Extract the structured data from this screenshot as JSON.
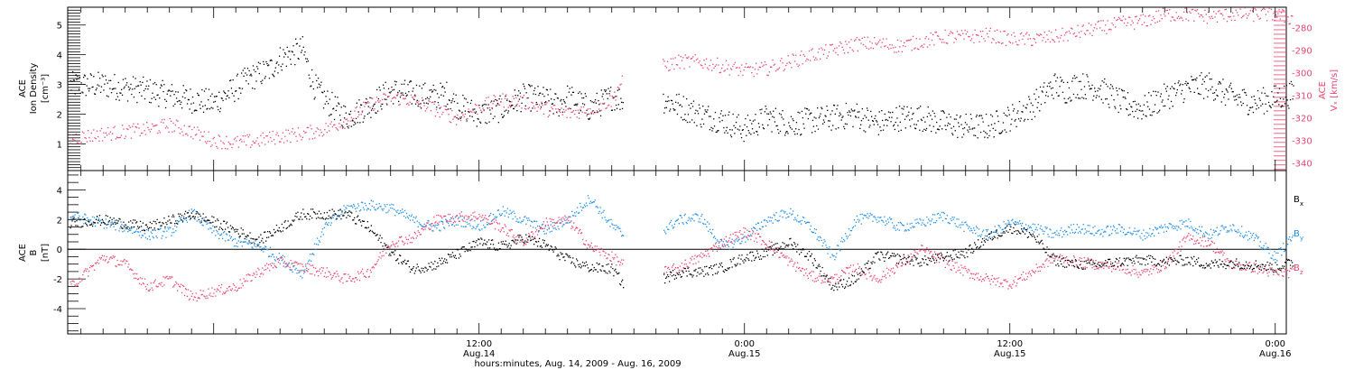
{
  "colors": {
    "black": "#000000",
    "pink": "#e8456f",
    "blue": "#1f8fe8"
  },
  "x_axis": {
    "title": "hours:minutes, Aug. 14, 2009 - Aug. 16, 2009",
    "range_hours": [
      -18.6,
      36.5
    ],
    "ticks": [
      {
        "hours": 0,
        "time": "12:00",
        "date": "Aug.14"
      },
      {
        "hours": 12,
        "time": "0:00",
        "date": "Aug.15"
      },
      {
        "hours": 24,
        "time": "12:00",
        "date": "Aug.15"
      },
      {
        "hours": 36,
        "time": "0:00",
        "date": "Aug.16"
      }
    ],
    "data_gap_hours": [
      6.5,
      8.3
    ],
    "data_end_hours": 36.8
  },
  "chart_data": [
    {
      "type": "scatter",
      "panel": "top",
      "left_axis": {
        "label_lines": [
          "ACE",
          "Ion Density",
          "[cm⁻³]"
        ],
        "ylim": [
          0.1,
          5.6
        ],
        "ticks": [
          1,
          2,
          3,
          4,
          5
        ],
        "color": "#000000"
      },
      "right_axis": {
        "label_lines": [
          "ACE",
          "Vₓ [km/s]"
        ],
        "ylim": [
          -343.5,
          -271
        ],
        "ticks": [
          -280,
          -290,
          -300,
          -310,
          -320,
          -330,
          -340
        ],
        "color": "#e8456f"
      },
      "series": [
        {
          "axis": "left",
          "color": "#000000",
          "x": [
            -18.5,
            -17,
            -15,
            -13,
            -12,
            -11,
            -10.5,
            -9.5,
            -9,
            -8,
            -7.5,
            -7,
            -6,
            -5,
            -4,
            -3,
            -2,
            -1.5,
            -1,
            0,
            1,
            2,
            3,
            3.5,
            4,
            5,
            6,
            6.5,
            8.3,
            9,
            10,
            11,
            12,
            13,
            14,
            15,
            16,
            17,
            18,
            19,
            20,
            21,
            22,
            23,
            24,
            25,
            26,
            26.5,
            27,
            28,
            29,
            30,
            31,
            32,
            33,
            34,
            35,
            36.8
          ],
          "y": [
            3.0,
            3.0,
            2.8,
            2.5,
            2.4,
            2.9,
            3.2,
            3.5,
            3.9,
            4.2,
            3.0,
            2.5,
            1.9,
            2.3,
            2.8,
            2.7,
            2.6,
            2.7,
            2.3,
            2.0,
            2.2,
            2.6,
            2.5,
            2.3,
            2.6,
            2.2,
            2.6,
            2.5,
            2.5,
            2.3,
            2.0,
            1.8,
            1.5,
            1.9,
            1.7,
            1.8,
            1.9,
            2.0,
            1.7,
            1.9,
            1.9,
            1.7,
            1.6,
            1.6,
            1.9,
            2.3,
            3.0,
            2.8,
            3.0,
            2.9,
            2.4,
            2.2,
            2.6,
            2.9,
            3.0,
            2.6,
            2.4,
            2.7
          ]
        },
        {
          "axis": "right",
          "color": "#e8456f",
          "x": [
            -18.5,
            -17,
            -16,
            -15,
            -14,
            -13,
            -12,
            -11,
            -10,
            -9,
            -8,
            -7,
            -6,
            -5,
            -4,
            -3,
            -2,
            -1,
            0,
            1,
            2,
            3,
            4,
            5,
            6,
            6.5,
            8.3,
            9,
            10,
            11,
            12,
            13,
            14,
            15,
            16,
            17,
            18,
            19,
            20,
            21,
            22,
            23,
            24,
            25,
            26,
            27,
            28,
            29,
            30,
            31,
            32,
            33,
            34,
            35,
            36,
            36.8
          ],
          "y": [
            -329,
            -327,
            -326,
            -325,
            -323,
            -326,
            -330,
            -331,
            -330,
            -328,
            -327,
            -325,
            -321,
            -314,
            -311,
            -312,
            -316,
            -320,
            -315,
            -312,
            -313,
            -316,
            -318,
            -316,
            -312,
            -302,
            -297,
            -295,
            -295,
            -297,
            -299,
            -298,
            -295,
            -292,
            -290,
            -287,
            -287,
            -288,
            -286,
            -284,
            -284,
            -283,
            -285,
            -285,
            -284,
            -282,
            -280,
            -278,
            -277,
            -274,
            -274,
            -275,
            -274,
            -274,
            -274,
            -276
          ]
        }
      ]
    },
    {
      "type": "scatter",
      "panel": "bottom",
      "y_axis": {
        "label_lines": [
          "ACE",
          "B",
          "[nT]"
        ],
        "ylim": [
          -5.7,
          5.3
        ],
        "ticks": [
          -4,
          -2,
          0,
          2,
          4
        ],
        "zero_line": true
      },
      "legend": [
        {
          "main": "B",
          "sub": "x",
          "color": "#000000"
        },
        {
          "main": "B",
          "sub": "y",
          "color": "#1f8fe8"
        },
        {
          "main": "B",
          "sub": "z",
          "color": "#e8456f"
        }
      ],
      "legend_position": "right",
      "series": [
        {
          "name": "Bx",
          "color": "#000000",
          "x": [
            -18.5,
            -17,
            -15,
            -13,
            -11,
            -10,
            -8,
            -7,
            -6,
            -5,
            -4,
            -3,
            -2,
            -1,
            0,
            1,
            2,
            3,
            4,
            5,
            6,
            6.5,
            8.3,
            9,
            10,
            11,
            12,
            13,
            14,
            15,
            16,
            17,
            18,
            19,
            20,
            21,
            22,
            23,
            24,
            25,
            26,
            27,
            28,
            29,
            30,
            31,
            32,
            33,
            34,
            35,
            36,
            36.8
          ],
          "y": [
            1.8,
            2.0,
            1.5,
            2.4,
            1.3,
            0.6,
            2.4,
            2.4,
            2.4,
            1.5,
            -0.2,
            -1.3,
            -1.0,
            -0.3,
            0.5,
            0.2,
            0.8,
            0.3,
            -0.7,
            -1.2,
            -1.3,
            -2.3,
            -2.0,
            -1.5,
            -1.5,
            -1.2,
            -0.5,
            -0.2,
            0.5,
            -0.5,
            -2.5,
            -2.0,
            -0.4,
            -0.6,
            -0.8,
            -0.5,
            -0.2,
            0.8,
            1.5,
            1.0,
            -0.7,
            -1.0,
            -1.0,
            -0.8,
            -0.7,
            -0.8,
            -0.7,
            -1.0,
            -0.9,
            -1.0,
            -1.2,
            -0.8
          ]
        },
        {
          "name": "By",
          "color": "#1f8fe8",
          "x": [
            -18.5,
            -17,
            -16,
            -15,
            -14,
            -13,
            -12,
            -11,
            -10,
            -9,
            -8,
            -7,
            -6,
            -5,
            -4,
            -3,
            -2,
            -1,
            0,
            1,
            2,
            3,
            4,
            5,
            6,
            6.5,
            8.3,
            9,
            10,
            11,
            12,
            13,
            14,
            15,
            16,
            17,
            18,
            19,
            20,
            21,
            22,
            23,
            24,
            25,
            26,
            27,
            28,
            29,
            30,
            31,
            32,
            33,
            34,
            35,
            36,
            36.8
          ],
          "y": [
            2.3,
            1.8,
            1.5,
            1.0,
            1.2,
            2.5,
            1.2,
            0.5,
            0.3,
            -0.6,
            -1.6,
            1.5,
            2.8,
            3.0,
            2.8,
            2.0,
            1.5,
            2.0,
            1.6,
            2.6,
            2.0,
            1.3,
            2.0,
            3.5,
            1.6,
            1.0,
            1.3,
            2.0,
            2.2,
            0.2,
            0.8,
            2.0,
            2.5,
            1.5,
            -0.5,
            2.0,
            2.2,
            1.5,
            1.8,
            2.3,
            1.5,
            1.0,
            1.8,
            1.5,
            1.0,
            1.5,
            1.2,
            1.4,
            1.0,
            1.5,
            1.8,
            1.0,
            1.6,
            0.8,
            -0.5,
            1.0
          ]
        },
        {
          "name": "Bz",
          "color": "#e8456f",
          "x": [
            -18.5,
            -17,
            -16,
            -15,
            -14,
            -13,
            -12,
            -11,
            -10,
            -9,
            -8,
            -7,
            -6,
            -5,
            -4,
            -3,
            -2,
            -1,
            0,
            1,
            2,
            3,
            4,
            5,
            6,
            6.5,
            8.3,
            9,
            10,
            11,
            12,
            13,
            14,
            15,
            16,
            17,
            18,
            19,
            20,
            21,
            22,
            23,
            24,
            25,
            26,
            27,
            28,
            29,
            30,
            31,
            32,
            33,
            34,
            35,
            36,
            36.8
          ],
          "y": [
            -2.5,
            -0.5,
            -1.0,
            -2.5,
            -2.0,
            -3.2,
            -2.8,
            -2.5,
            -1.5,
            -0.8,
            -1.2,
            -1.5,
            -2.0,
            -1.5,
            0.5,
            0.8,
            2.0,
            2.2,
            2.3,
            1.5,
            0.5,
            1.8,
            2.0,
            0.2,
            -0.5,
            -1.0,
            -1.5,
            -1.2,
            -0.5,
            0.5,
            1.2,
            0.5,
            -0.8,
            -1.8,
            -2.0,
            -1.2,
            -2.0,
            -1.0,
            0.0,
            -0.8,
            -1.5,
            -2.0,
            -2.3,
            -1.5,
            -0.5,
            -0.8,
            -1.0,
            -1.2,
            -1.6,
            -1.0,
            0.8,
            0.5,
            -1.0,
            -1.2,
            -1.6,
            -1.5
          ]
        }
      ]
    }
  ]
}
